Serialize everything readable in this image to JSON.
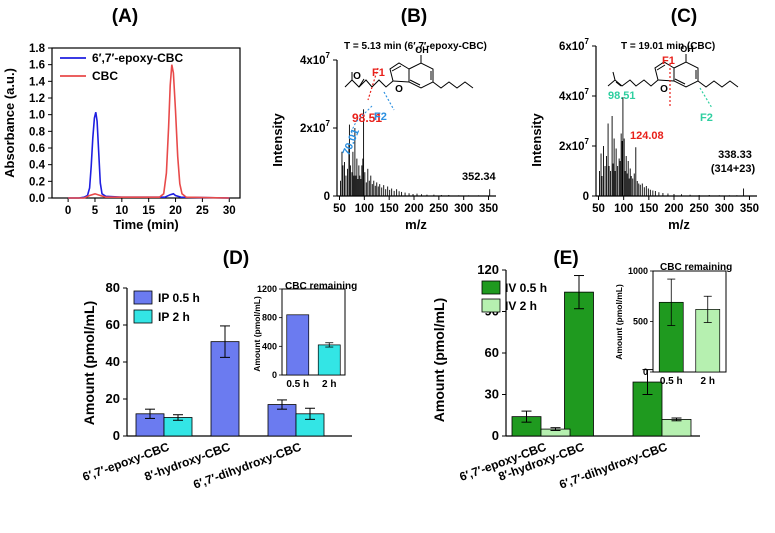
{
  "colors": {
    "blue": "#1f1fe0",
    "red": "#e84a4a",
    "peak_red": "#e8201a",
    "fragment_blue": "#2a8fe0",
    "fragment_teal": "#2fcfa0",
    "ip_05": "#6b7bf0",
    "ip_2": "#33e5e5",
    "iv_05": "#1f9a1f",
    "iv_2": "#b6f0b0"
  },
  "chart_data": [
    {
      "id": "A",
      "type": "line",
      "panel_label": "(A)",
      "xlabel": "Time (min)",
      "ylabel": "Absorbance (a.u.)",
      "xlim": [
        -3,
        32
      ],
      "ylim": [
        0,
        1.8
      ],
      "xticks": [
        0,
        5,
        10,
        15,
        20,
        25,
        30
      ],
      "yticks": [
        0.0,
        0.2,
        0.4,
        0.6,
        0.8,
        1.0,
        1.2,
        1.4,
        1.6,
        1.8
      ],
      "ytick_labels": [
        "0.0",
        "0.2",
        "0.4",
        "0.6",
        "0.8",
        "1.0",
        "1.2",
        "1.4",
        "1.6",
        "1.8"
      ],
      "legend_position": "top-left",
      "series": [
        {
          "name": "6′,7′-epoxy-CBC",
          "color_key": "blue",
          "x": [
            0,
            2,
            3,
            3.6,
            4,
            4.3,
            4.6,
            4.9,
            5.15,
            5.4,
            5.7,
            6.0,
            6.3,
            7,
            10,
            18,
            19,
            19.6,
            20,
            21,
            30
          ],
          "y": [
            0,
            0,
            0.01,
            0.03,
            0.12,
            0.38,
            0.72,
            0.96,
            1.03,
            0.92,
            0.55,
            0.18,
            0.05,
            0.02,
            0.01,
            0.01,
            0.04,
            0.05,
            0.03,
            0.01,
            0
          ]
        },
        {
          "name": "CBC",
          "color_key": "red",
          "x": [
            0,
            3,
            4,
            5,
            6,
            7,
            17,
            17.8,
            18.3,
            18.7,
            19.0,
            19.3,
            19.6,
            20.0,
            20.4,
            20.8,
            21.2,
            22,
            30
          ],
          "y": [
            0,
            0,
            0.03,
            0.05,
            0.03,
            0.01,
            0.01,
            0.05,
            0.3,
            0.85,
            1.35,
            1.6,
            1.5,
            1.05,
            0.5,
            0.17,
            0.05,
            0.01,
            0
          ]
        }
      ]
    },
    {
      "id": "B",
      "type": "bar",
      "panel_label": "(B)",
      "title": "T = 5.13 min (6′,7′-epoxy-CBC)",
      "xlabel": "m/z",
      "ylabel": "Intensity",
      "xlim": [
        45,
        365
      ],
      "xticks": [
        50,
        100,
        150,
        200,
        250,
        300,
        350
      ],
      "ylim": [
        0,
        4.0
      ],
      "y_unit": "x10^7",
      "yticks": [
        0,
        2,
        4
      ],
      "ytick_labels": [
        {
          "base": "0",
          "exp": ""
        },
        {
          "base": "2x10",
          "exp": "7"
        },
        {
          "base": "4x10",
          "exp": "7"
        }
      ],
      "annotations": [
        {
          "text": "98.51",
          "color_key": "peak_red",
          "mz": 98.51
        },
        {
          "text": "70.01",
          "color_key": "fragment_blue",
          "mz": 70.01
        },
        {
          "text": "352.34",
          "color_key": "",
          "mz": 352.34
        },
        {
          "text": "F1",
          "color_key": "peak_red"
        },
        {
          "text": "F2",
          "color_key": "fragment_blue"
        },
        {
          "text": "OH",
          "color_key": ""
        },
        {
          "text": "O",
          "color_key": ""
        },
        {
          "text": "O",
          "color_key": ""
        }
      ],
      "peaks": {
        "mz": [
          52,
          55,
          57,
          60,
          63,
          66,
          69,
          70,
          72,
          75,
          77,
          79,
          81,
          83,
          85,
          87,
          89,
          91,
          93,
          95,
          97,
          98.5,
          101,
          104,
          107,
          110,
          113,
          116,
          119,
          122,
          125,
          128,
          131,
          135,
          139,
          143,
          147,
          151,
          155,
          160,
          165,
          170,
          175,
          182,
          190,
          198,
          206,
          215,
          226,
          240,
          255,
          270,
          290,
          310,
          330,
          352.3
        ],
        "intensity": [
          0.45,
          1.3,
          0.9,
          1.0,
          0.6,
          0.8,
          1.5,
          2.1,
          0.9,
          0.7,
          1.3,
          0.6,
          2.0,
          0.6,
          1.1,
          0.5,
          0.9,
          0.6,
          0.5,
          0.9,
          1.1,
          2.55,
          0.7,
          0.4,
          0.8,
          0.45,
          0.6,
          0.35,
          0.45,
          0.3,
          0.4,
          0.28,
          0.35,
          0.25,
          0.32,
          0.2,
          0.28,
          0.18,
          0.22,
          0.15,
          0.2,
          0.14,
          0.12,
          0.1,
          0.08,
          0.06,
          0.07,
          0.05,
          0.04,
          0.04,
          0.03,
          0.03,
          0.02,
          0.02,
          0.02,
          0.2
        ]
      }
    },
    {
      "id": "C",
      "type": "bar",
      "panel_label": "(C)",
      "title": "T = 19.01 min (CBC)",
      "xlabel": "m/z",
      "ylabel": "Intensity",
      "xlim": [
        45,
        365
      ],
      "xticks": [
        50,
        100,
        150,
        200,
        250,
        300,
        350
      ],
      "ylim": [
        0,
        6.0
      ],
      "y_unit": "x10^7",
      "yticks": [
        0,
        2,
        4,
        6
      ],
      "ytick_labels": [
        {
          "base": "0",
          "exp": ""
        },
        {
          "base": "2x10",
          "exp": "7"
        },
        {
          "base": "4x10",
          "exp": "7"
        },
        {
          "base": "6x10",
          "exp": "7"
        }
      ],
      "annotations": [
        {
          "text": "98.51",
          "color_key": "fragment_teal",
          "mz": 98.51
        },
        {
          "text": "124.08",
          "color_key": "peak_red",
          "mz": 124.08
        },
        {
          "text": "338.33",
          "color_key": "",
          "mz": 338.33
        },
        {
          "text": "(314+23)",
          "color_key": ""
        },
        {
          "text": "F1",
          "color_key": "peak_red"
        },
        {
          "text": "F2",
          "color_key": "fragment_teal"
        },
        {
          "text": "OH",
          "color_key": ""
        },
        {
          "text": "O",
          "color_key": ""
        }
      ],
      "peaks": {
        "mz": [
          52,
          55,
          57,
          60,
          63,
          66,
          69,
          71,
          74,
          77,
          79,
          81,
          83,
          85,
          88,
          91,
          93,
          95,
          97,
          98.5,
          101,
          103,
          105,
          107,
          109,
          111,
          113,
          115,
          118,
          121,
          124.1,
          127,
          130,
          133,
          137,
          141,
          145,
          149,
          153,
          158,
          163,
          170,
          178,
          188,
          200,
          215,
          232,
          250,
          270,
          290,
          310,
          325,
          338.3
        ],
        "intensity": [
          1.0,
          1.7,
          0.8,
          2.0,
          1.2,
          1.6,
          2.9,
          1.2,
          1.0,
          3.2,
          1.3,
          2.3,
          1.0,
          1.9,
          1.2,
          1.5,
          1.4,
          2.5,
          2.2,
          3.95,
          2.3,
          1.0,
          1.6,
          0.9,
          1.4,
          0.7,
          1.1,
          0.8,
          0.7,
          0.9,
          1.95,
          0.6,
          0.5,
          0.45,
          0.5,
          0.35,
          0.4,
          0.3,
          0.25,
          0.22,
          0.2,
          0.15,
          0.12,
          0.1,
          0.08,
          0.07,
          0.05,
          0.04,
          0.04,
          0.03,
          0.03,
          0.03,
          0.3
        ]
      }
    },
    {
      "id": "D",
      "type": "bar",
      "panel_label": "(D)",
      "ylabel": "Amount (pmol/mL)",
      "ylim": [
        0,
        80
      ],
      "yticks": [
        0,
        20,
        40,
        60,
        80
      ],
      "categories": [
        "6′,7′-epoxy-CBC",
        "8′-hydroxy-CBC",
        "6′,7′-dihydroxy-CBC"
      ],
      "legend_position": "top-left",
      "series": [
        {
          "name": "IP 0.5 h",
          "color_key": "ip_05",
          "values": [
            12,
            51,
            17
          ],
          "errors": [
            2.5,
            8.5,
            2.5
          ]
        },
        {
          "name": "IP 2 h",
          "color_key": "ip_2",
          "values": [
            10,
            null,
            12
          ],
          "errors": [
            1.5,
            null,
            3
          ]
        }
      ],
      "inset": {
        "title": "CBC remaining",
        "ylabel": "Amount (pmol/mL)",
        "ylim": [
          0,
          1200
        ],
        "yticks": [
          0,
          400,
          800,
          1200
        ],
        "categories": [
          "0.5 h",
          "2 h"
        ],
        "values": [
          840,
          420
        ],
        "errors": [
          0,
          30
        ],
        "color_keys": [
          "ip_05",
          "ip_2"
        ]
      }
    },
    {
      "id": "E",
      "type": "bar",
      "panel_label": "(E)",
      "ylabel": "Amount (pmol/mL)",
      "ylim": [
        0,
        120
      ],
      "yticks": [
        0,
        30,
        60,
        90,
        120
      ],
      "categories": [
        "6′,7′-epoxy-CBC",
        "8′-hydroxy-CBC",
        "6′,7′-dihydroxy-CBC"
      ],
      "legend_position": "top-left",
      "series": [
        {
          "name": "IV 0.5 h",
          "color_key": "iv_05",
          "values": [
            14,
            104,
            39
          ],
          "errors": [
            4,
            12,
            9
          ]
        },
        {
          "name": "IV 2 h",
          "color_key": "iv_2",
          "values": [
            5,
            null,
            12
          ],
          "errors": [
            1,
            null,
            1
          ]
        }
      ],
      "inset": {
        "title": "CBC remaining",
        "ylabel": "Amount (pmol/mL)",
        "ylim": [
          0,
          1000
        ],
        "yticks": [
          0,
          500,
          1000
        ],
        "categories": [
          "0.5 h",
          "2 h"
        ],
        "values": [
          690,
          620
        ],
        "errors": [
          230,
          130
        ],
        "color_keys": [
          "iv_05",
          "iv_2"
        ]
      }
    }
  ]
}
